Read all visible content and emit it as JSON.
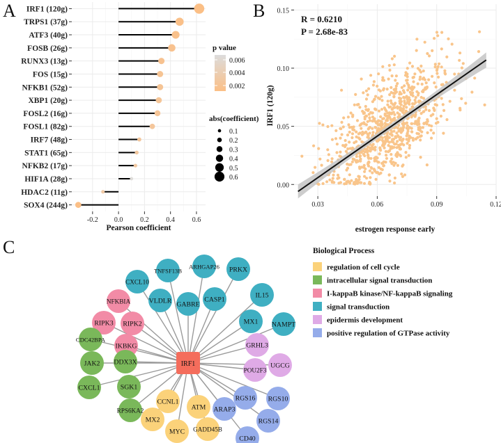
{
  "panels": {
    "a": "A",
    "b": "B",
    "c": "C"
  },
  "colors": {
    "pmin": "#fbbf86",
    "pmax": "#dcdcdc",
    "stem": "#000000",
    "scatter": "#f9c58b",
    "fit": "#111111",
    "band": "#c4c4c4",
    "edge": "#9a9a9a",
    "hub": "#f46d5c"
  },
  "chart_data": [
    {
      "id": "lollipop",
      "type": "lollipop",
      "xlabel": "Pearson coefficient",
      "xticks": [
        -0.2,
        0.0,
        0.2,
        0.4,
        0.6
      ],
      "xlim": [
        -0.36,
        0.67
      ],
      "genes": [
        {
          "label": "IRF1 (120g)",
          "r": 0.621,
          "p": 0.0001
        },
        {
          "label": "TRPS1 (37g)",
          "r": 0.47,
          "p": 0.0003
        },
        {
          "label": "ATF3 (40g)",
          "r": 0.44,
          "p": 0.0005
        },
        {
          "label": "FOSB (26g)",
          "r": 0.41,
          "p": 0.0008
        },
        {
          "label": "RUNX3 (13g)",
          "r": 0.33,
          "p": 0.0009
        },
        {
          "label": "FOS (15g)",
          "r": 0.32,
          "p": 0.0012
        },
        {
          "label": "NFKB1 (52g)",
          "r": 0.32,
          "p": 0.0013
        },
        {
          "label": "XBP1 (20g)",
          "r": 0.31,
          "p": 0.0014
        },
        {
          "label": "FOSL2 (16g)",
          "r": 0.3,
          "p": 0.0015
        },
        {
          "label": "FOSL1 (82g)",
          "r": 0.26,
          "p": 0.0017
        },
        {
          "label": "IRF7 (48g)",
          "r": 0.16,
          "p": 0.0018
        },
        {
          "label": "STAT1 (65g)",
          "r": 0.14,
          "p": 0.002
        },
        {
          "label": "NFKB2 (17g)",
          "r": 0.13,
          "p": 0.0022
        },
        {
          "label": "HIF1A (28g)",
          "r": 0.1,
          "p": 0.0065
        },
        {
          "label": "HDAC2 (11g)",
          "r": -0.12,
          "p": 0.0025
        },
        {
          "label": "SOX4 (244g)",
          "r": -0.31,
          "p": 0.0001
        }
      ],
      "legend_p": {
        "title": "p value",
        "ticks": [
          "0.006",
          "0.004",
          "0.002"
        ]
      },
      "legend_size": {
        "title": "abs(coefficient)",
        "values": [
          "0.1",
          "0.2",
          "0.3",
          "0.4",
          "0.5",
          "0.6"
        ]
      }
    },
    {
      "id": "scatter",
      "type": "scatter",
      "xlabel": "estrogen response early",
      "ylabel": "IRF1 (120g)",
      "xticks": [
        "0.03",
        "0.06",
        "0.09",
        "0.12"
      ],
      "yticks": [
        "0.00",
        "0.05",
        "0.10",
        "0.15"
      ],
      "xlim": [
        0.018,
        0.12
      ],
      "ylim": [
        -0.01,
        0.155
      ],
      "r_text": "R = 0.6210",
      "p_text": "P = 2.68e-83",
      "fit": {
        "x0": 0.02,
        "y0": -0.006,
        "x1": 0.115,
        "y1": 0.107
      },
      "point_count": 900
    }
  ],
  "network": {
    "hub": "IRF1",
    "nodes": [
      {
        "label": "CXCL10",
        "cat": "signal"
      },
      {
        "label": "TNFSF13B",
        "cat": "signal"
      },
      {
        "label": "ARHGAP26",
        "cat": "signal"
      },
      {
        "label": "PRKX",
        "cat": "signal"
      },
      {
        "label": "VLDLR",
        "cat": "signal"
      },
      {
        "label": "GABRE",
        "cat": "signal"
      },
      {
        "label": "CASP1",
        "cat": "signal"
      },
      {
        "label": "IL15",
        "cat": "signal"
      },
      {
        "label": "MX1",
        "cat": "signal"
      },
      {
        "label": "NAMPT",
        "cat": "signal"
      },
      {
        "label": "NFKBIA",
        "cat": "ikb"
      },
      {
        "label": "RIPK3",
        "cat": "ikb"
      },
      {
        "label": "RIPK2",
        "cat": "ikb"
      },
      {
        "label": "IKBKG",
        "cat": "ikb"
      },
      {
        "label": "CDC42BPA",
        "cat": "intra"
      },
      {
        "label": "JAK2",
        "cat": "intra"
      },
      {
        "label": "DDX3X",
        "cat": "intra"
      },
      {
        "label": "CXCL1",
        "cat": "intra"
      },
      {
        "label": "SGK1",
        "cat": "intra"
      },
      {
        "label": "RPS6KA2",
        "cat": "intra"
      },
      {
        "label": "GRHL3",
        "cat": "epi"
      },
      {
        "label": "UGCG",
        "cat": "epi"
      },
      {
        "label": "POU2F3",
        "cat": "epi"
      },
      {
        "label": "RGS10",
        "cat": "gtp"
      },
      {
        "label": "RGS16",
        "cat": "gtp"
      },
      {
        "label": "RGS14",
        "cat": "gtp"
      },
      {
        "label": "ARAP3",
        "cat": "gtp"
      },
      {
        "label": "CD40",
        "cat": "gtp"
      },
      {
        "label": "CCNL1",
        "cat": "cycle"
      },
      {
        "label": "ATM",
        "cat": "cycle"
      },
      {
        "label": "MX2",
        "cat": "cycle"
      },
      {
        "label": "MYC",
        "cat": "cycle"
      },
      {
        "label": "GADD45B",
        "cat": "cycle"
      }
    ],
    "legend_title": "Biological Process",
    "categories": [
      {
        "key": "cycle",
        "label": "regulation of cell cycle",
        "color": "#fbd27a"
      },
      {
        "key": "intra",
        "label": "intracellular signal transduction",
        "color": "#7ab85a"
      },
      {
        "key": "ikb",
        "label": "I-kappaB kinase/NF-kappaB signaling",
        "color": "#f28ba6"
      },
      {
        "key": "signal",
        "label": "signal transduction",
        "color": "#3fafc2"
      },
      {
        "key": "epi",
        "label": "epidermis development",
        "color": "#dfaae6"
      },
      {
        "key": "gtp",
        "label": "positive regulation of GTPase activity",
        "color": "#95acea"
      }
    ]
  }
}
